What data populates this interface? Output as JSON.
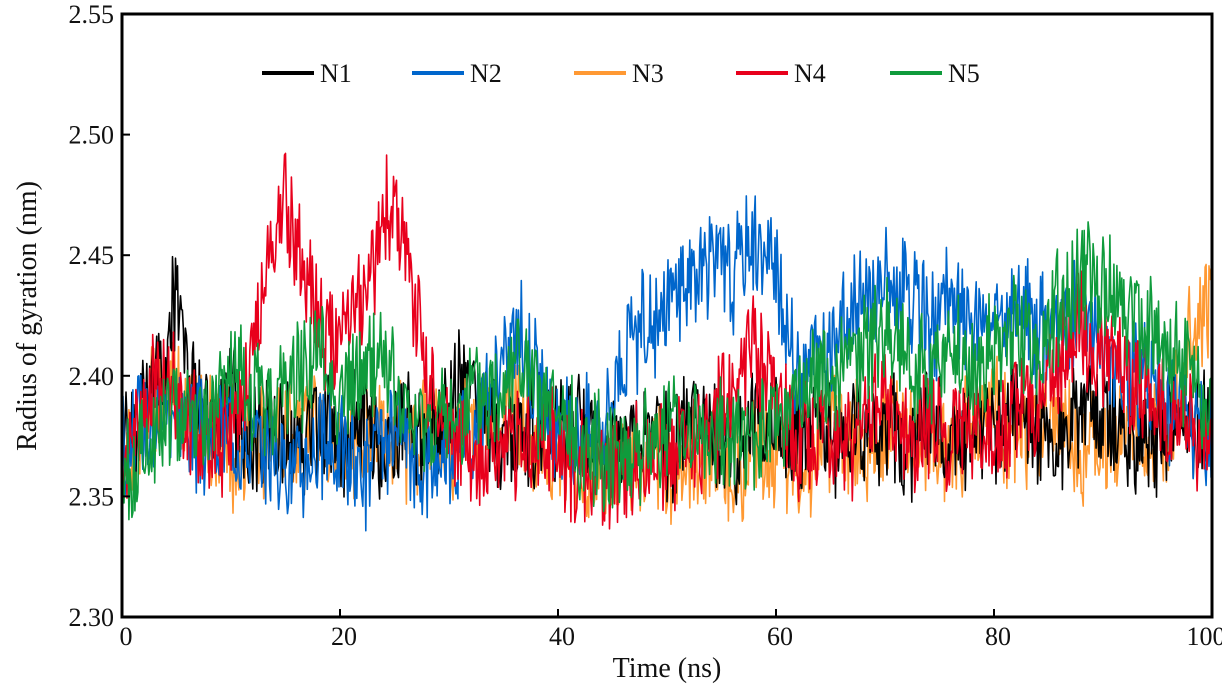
{
  "chart_data": {
    "type": "line",
    "title": "",
    "xlabel": "Time (ns)",
    "ylabel": "Radius of gyration (nm)",
    "xlim": [
      0,
      100
    ],
    "ylim": [
      2.3,
      2.55
    ],
    "xticks": [
      "0",
      "20",
      "40",
      "60",
      "80",
      "100"
    ],
    "yticks": [
      "2.30",
      "2.35",
      "2.40",
      "2.45",
      "2.50",
      "2.55"
    ],
    "grid": false,
    "legend_position": "top",
    "series": [
      {
        "name": "N1",
        "color": "#000000",
        "x": [
          0,
          2,
          4,
          5,
          6,
          8,
          10,
          12,
          14,
          16,
          18,
          20,
          22,
          24,
          26,
          28,
          30,
          32,
          34,
          36,
          38,
          40,
          42,
          44,
          46,
          48,
          50,
          52,
          54,
          56,
          58,
          60,
          62,
          64,
          66,
          68,
          70,
          72,
          74,
          76,
          78,
          80,
          82,
          84,
          86,
          88,
          90,
          92,
          94,
          96,
          98,
          100
        ],
        "y": [
          2.37,
          2.39,
          2.41,
          2.44,
          2.4,
          2.38,
          2.39,
          2.37,
          2.38,
          2.37,
          2.38,
          2.37,
          2.38,
          2.37,
          2.38,
          2.37,
          2.39,
          2.4,
          2.38,
          2.37,
          2.38,
          2.37,
          2.38,
          2.37,
          2.37,
          2.38,
          2.37,
          2.38,
          2.38,
          2.37,
          2.38,
          2.38,
          2.37,
          2.38,
          2.37,
          2.38,
          2.38,
          2.37,
          2.38,
          2.37,
          2.38,
          2.37,
          2.39,
          2.38,
          2.37,
          2.39,
          2.38,
          2.38,
          2.37,
          2.38,
          2.38,
          2.38
        ]
      },
      {
        "name": "N2",
        "color": "#0066cc",
        "x": [
          0,
          2,
          4,
          6,
          8,
          10,
          12,
          14,
          16,
          18,
          20,
          22,
          24,
          26,
          28,
          30,
          32,
          34,
          36,
          38,
          40,
          42,
          44,
          46,
          48,
          50,
          52,
          54,
          56,
          58,
          60,
          62,
          64,
          66,
          68,
          70,
          72,
          74,
          76,
          78,
          80,
          82,
          84,
          86,
          88,
          90,
          92,
          94,
          96,
          98,
          100
        ],
        "y": [
          2.37,
          2.38,
          2.39,
          2.38,
          2.37,
          2.38,
          2.37,
          2.37,
          2.36,
          2.37,
          2.37,
          2.36,
          2.37,
          2.37,
          2.36,
          2.37,
          2.38,
          2.39,
          2.42,
          2.4,
          2.37,
          2.38,
          2.38,
          2.41,
          2.42,
          2.43,
          2.44,
          2.45,
          2.44,
          2.46,
          2.44,
          2.4,
          2.41,
          2.42,
          2.43,
          2.44,
          2.43,
          2.42,
          2.43,
          2.42,
          2.42,
          2.43,
          2.42,
          2.42,
          2.43,
          2.41,
          2.4,
          2.4,
          2.39,
          2.38,
          2.38
        ]
      },
      {
        "name": "N3",
        "color": "#ff9933",
        "x": [
          0,
          2,
          4,
          6,
          8,
          10,
          12,
          14,
          16,
          18,
          20,
          22,
          24,
          26,
          28,
          30,
          32,
          34,
          36,
          38,
          40,
          42,
          44,
          46,
          48,
          50,
          52,
          54,
          56,
          58,
          60,
          62,
          64,
          66,
          68,
          70,
          72,
          74,
          76,
          78,
          80,
          82,
          84,
          86,
          88,
          90,
          92,
          94,
          96,
          98,
          100
        ],
        "y": [
          2.37,
          2.38,
          2.4,
          2.39,
          2.38,
          2.37,
          2.37,
          2.37,
          2.38,
          2.38,
          2.37,
          2.37,
          2.38,
          2.37,
          2.38,
          2.37,
          2.38,
          2.38,
          2.39,
          2.37,
          2.37,
          2.36,
          2.36,
          2.36,
          2.36,
          2.36,
          2.36,
          2.37,
          2.36,
          2.37,
          2.37,
          2.36,
          2.37,
          2.38,
          2.37,
          2.38,
          2.38,
          2.37,
          2.37,
          2.38,
          2.39,
          2.37,
          2.38,
          2.38,
          2.37,
          2.37,
          2.38,
          2.37,
          2.38,
          2.42,
          2.43
        ]
      },
      {
        "name": "N4",
        "color": "#e8001c",
        "x": [
          0,
          2,
          4,
          6,
          8,
          10,
          12,
          13,
          14,
          15,
          16,
          17,
          18,
          20,
          22,
          23,
          24,
          25,
          26,
          27,
          28,
          30,
          32,
          34,
          36,
          38,
          40,
          42,
          44,
          46,
          48,
          50,
          52,
          54,
          56,
          58,
          60,
          62,
          64,
          66,
          68,
          70,
          72,
          74,
          76,
          78,
          80,
          82,
          84,
          86,
          88,
          90,
          92,
          94,
          96,
          98,
          100
        ],
        "y": [
          2.36,
          2.39,
          2.4,
          2.38,
          2.37,
          2.38,
          2.41,
          2.44,
          2.46,
          2.47,
          2.45,
          2.44,
          2.42,
          2.41,
          2.43,
          2.45,
          2.46,
          2.48,
          2.45,
          2.43,
          2.4,
          2.38,
          2.37,
          2.37,
          2.37,
          2.37,
          2.37,
          2.36,
          2.36,
          2.36,
          2.37,
          2.37,
          2.37,
          2.38,
          2.39,
          2.41,
          2.39,
          2.37,
          2.38,
          2.37,
          2.38,
          2.39,
          2.37,
          2.38,
          2.37,
          2.38,
          2.37,
          2.38,
          2.39,
          2.41,
          2.42,
          2.41,
          2.4,
          2.39,
          2.38,
          2.38,
          2.37
        ]
      },
      {
        "name": "N5",
        "color": "#0f9b3c",
        "x": [
          0,
          2,
          4,
          6,
          8,
          10,
          12,
          14,
          16,
          18,
          20,
          22,
          24,
          26,
          28,
          30,
          32,
          34,
          36,
          38,
          40,
          42,
          44,
          46,
          48,
          50,
          52,
          54,
          56,
          58,
          60,
          62,
          64,
          66,
          68,
          70,
          72,
          74,
          76,
          78,
          80,
          82,
          84,
          86,
          88,
          90,
          92,
          94,
          96,
          98,
          100
        ],
        "y": [
          2.35,
          2.37,
          2.38,
          2.39,
          2.38,
          2.4,
          2.39,
          2.39,
          2.4,
          2.41,
          2.39,
          2.4,
          2.41,
          2.38,
          2.38,
          2.38,
          2.39,
          2.39,
          2.41,
          2.39,
          2.38,
          2.37,
          2.37,
          2.37,
          2.37,
          2.38,
          2.38,
          2.37,
          2.38,
          2.37,
          2.38,
          2.39,
          2.4,
          2.4,
          2.41,
          2.42,
          2.41,
          2.4,
          2.41,
          2.4,
          2.41,
          2.42,
          2.41,
          2.43,
          2.44,
          2.44,
          2.43,
          2.42,
          2.41,
          2.4,
          2.39
        ]
      }
    ]
  }
}
